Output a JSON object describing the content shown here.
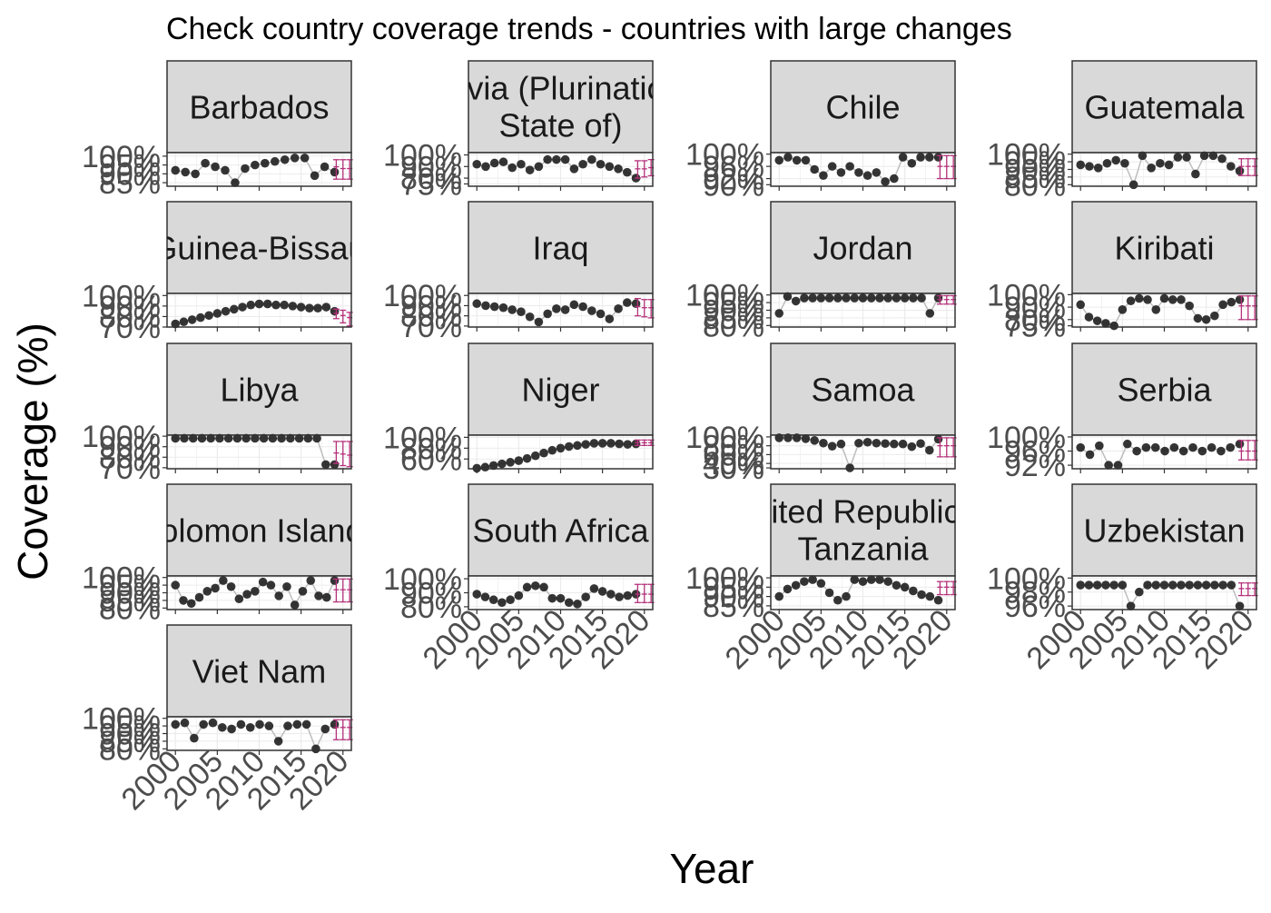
{
  "chart_data": {
    "type": "scatter",
    "title": "Check country coverage trends - countries with large changes",
    "xlabel": "Year",
    "ylabel": "Coverage (%)",
    "x_ticks": [
      "2000",
      "2005",
      "2010",
      "2015",
      "2020"
    ],
    "x_range": [
      1999,
      2021
    ],
    "grid": true,
    "colors": {
      "point": "#1f1f1f",
      "line": "#bdbdbd",
      "estimate": "#b5307a",
      "strip": "#d9d9d9",
      "border": "#333333",
      "grid": "#ebebeb",
      "axis_text": "#4d4d4d"
    },
    "panels": [
      {
        "name": "Barbados",
        "strip": [
          "Barbados"
        ],
        "y_ticks": [
          "100%",
          "95%",
          "90%",
          "85%"
        ],
        "ylim": [
          83,
          102
        ],
        "values": [
          92,
          91,
          90,
          96,
          94,
          92,
          85,
          93,
          95,
          96,
          97,
          98,
          99,
          99,
          89,
          94,
          91
        ],
        "estimates": [
          [
            94,
            87,
            98
          ],
          [
            93,
            87,
            98
          ],
          [
            93,
            87,
            98
          ]
        ]
      },
      {
        "name": "Bolivia (Plurinational State of)",
        "strip": [
          "Bolivia (Plurinational",
          "State of)"
        ],
        "y_ticks": [
          "100%",
          "90%",
          "80%",
          "75%"
        ],
        "ylim": [
          73,
          102
        ],
        "values": [
          92,
          90,
          93,
          94,
          89,
          92,
          87,
          90,
          96,
          96,
          96,
          88,
          92,
          96,
          92,
          90,
          88,
          85,
          80
        ],
        "estimates": [
          [
            88,
            80,
            95
          ],
          [
            88,
            81,
            95
          ],
          [
            89,
            82,
            96
          ]
        ]
      },
      {
        "name": "Chile",
        "strip": [
          "Chile"
        ],
        "y_ticks": [
          "100%",
          "96%",
          "92%",
          "90%"
        ],
        "ylim": [
          89.5,
          100.5
        ],
        "values": [
          98,
          99,
          98,
          98,
          95,
          93,
          96,
          94,
          96,
          94,
          93,
          94,
          91,
          92,
          99,
          97,
          99,
          99,
          99
        ],
        "estimates": [
          [
            96,
            92,
            99.5
          ],
          [
            96,
            92,
            99.5
          ],
          [
            96,
            92,
            99.5
          ]
        ]
      },
      {
        "name": "Guatemala",
        "strip": [
          "Guatemala"
        ],
        "y_ticks": [
          "100%",
          "95%",
          "90%",
          "85%",
          "80%"
        ],
        "ylim": [
          79,
          101
        ],
        "values": [
          93,
          92,
          91,
          94,
          96,
          94,
          80,
          99,
          91,
          94,
          93,
          98,
          98,
          87,
          99,
          99,
          97,
          92,
          89
        ],
        "estimates": [
          [
            92,
            86,
            97
          ],
          [
            92,
            86,
            97
          ],
          [
            92,
            86,
            97
          ]
        ]
      },
      {
        "name": "Guinea-Bissau",
        "strip": [
          "Guinea-Bissau"
        ],
        "y_ticks": [
          "100%",
          "90%",
          "80%",
          "70%"
        ],
        "ylim": [
          70,
          102
        ],
        "values": [
          73,
          75,
          77,
          79,
          81,
          83,
          85,
          87,
          89,
          91,
          92,
          92,
          91,
          91,
          90,
          89,
          88,
          88,
          89,
          85
        ],
        "estimates": [
          [
            83,
            78,
            87
          ],
          [
            81,
            74,
            86
          ],
          [
            79,
            71,
            84
          ]
        ]
      },
      {
        "name": "Iraq",
        "strip": [
          "Iraq"
        ],
        "y_ticks": [
          "100%",
          "90%",
          "80%",
          "70%"
        ],
        "ylim": [
          69,
          102
        ],
        "values": [
          92,
          90,
          89,
          88,
          86,
          84,
          79,
          74,
          82,
          87,
          86,
          91,
          89,
          85,
          82,
          77,
          87,
          93,
          92
        ],
        "estimates": [
          [
            89,
            80,
            97
          ],
          [
            88,
            79,
            96
          ],
          [
            88,
            78,
            96
          ]
        ]
      },
      {
        "name": "Jordan",
        "strip": [
          "Jordan"
        ],
        "y_ticks": [
          "100%",
          "95%",
          "90%",
          "85%",
          "80%"
        ],
        "ylim": [
          79,
          101
        ],
        "values": [
          88,
          99,
          96,
          98,
          98,
          98,
          98,
          98,
          98,
          98,
          98,
          98,
          98,
          98,
          98,
          98,
          98,
          98,
          88,
          98
        ],
        "estimates": [
          [
            97,
            94,
            99.5
          ],
          [
            97,
            94,
            99.5
          ],
          [
            97,
            94,
            99.5
          ]
        ]
      },
      {
        "name": "Kiribati",
        "strip": [
          "Kiribati"
        ],
        "y_ticks": [
          "100%",
          "90%",
          "80%",
          "75%"
        ],
        "ylim": [
          74,
          101
        ],
        "values": [
          92,
          82,
          79,
          77,
          75,
          88,
          95,
          97,
          96,
          88,
          97,
          96,
          96,
          91,
          81,
          80,
          83,
          92,
          94,
          96
        ],
        "estimates": [
          [
            91,
            80,
            99
          ],
          [
            91,
            80,
            99
          ],
          [
            91,
            80,
            99
          ]
        ]
      },
      {
        "name": "Libya",
        "strip": [
          "Libya"
        ],
        "y_ticks": [
          "100%",
          "90%",
          "80%",
          "70%"
        ],
        "ylim": [
          69,
          101
        ],
        "values": [
          98,
          98,
          98,
          98,
          98,
          98,
          98,
          98,
          98,
          98,
          98,
          98,
          98,
          98,
          98,
          98,
          98,
          73,
          73
        ],
        "estimates": [
          [
            84,
            74,
            95
          ],
          [
            83,
            72,
            95
          ],
          [
            82,
            71,
            95
          ]
        ]
      },
      {
        "name": "Niger",
        "strip": [
          "Niger"
        ],
        "y_ticks": [
          "100%",
          "80%",
          "60%"
        ],
        "ylim": [
          42,
          104
        ],
        "values": [
          43,
          45,
          48,
          51,
          54,
          57,
          61,
          66,
          71,
          76,
          80,
          83,
          85,
          87,
          89,
          89,
          89,
          88,
          87,
          88
        ],
        "estimates": [
          [
            90,
            85,
            95
          ],
          [
            90,
            85,
            95
          ],
          [
            90,
            85,
            95
          ]
        ]
      },
      {
        "name": "Samoa",
        "strip": [
          "Samoa"
        ],
        "y_ticks": [
          "100%",
          "80%",
          "60%",
          "40%",
          "30%"
        ],
        "ylim": [
          28,
          104
        ],
        "values": [
          98,
          98,
          98,
          96,
          92,
          86,
          79,
          84,
          30,
          86,
          88,
          86,
          85,
          84,
          84,
          78,
          85,
          70,
          95
        ],
        "estimates": [
          [
            80,
            55,
            98
          ],
          [
            80,
            55,
            98
          ],
          [
            80,
            55,
            98
          ]
        ]
      },
      {
        "name": "Serbia",
        "strip": [
          "Serbia"
        ],
        "y_ticks": [
          "100%",
          "96%",
          "92%"
        ],
        "ylim": [
          91,
          100.5
        ],
        "values": [
          97,
          95,
          97.5,
          92,
          92,
          98,
          96,
          97,
          97,
          96,
          97,
          96,
          97,
          96,
          97,
          96,
          97,
          98
        ],
        "estimates": [
          [
            96,
            93.5,
            99
          ],
          [
            96,
            93.5,
            99
          ],
          [
            96,
            93.5,
            99
          ]
        ]
      },
      {
        "name": "Solomon Islands",
        "strip": [
          "Solomon Islands"
        ],
        "y_ticks": [
          "100%",
          "95%",
          "90%",
          "85%",
          "80%"
        ],
        "ylim": [
          79,
          101
        ],
        "values": [
          95,
          85,
          83,
          87,
          91,
          93,
          98,
          94,
          86,
          89,
          91,
          97,
          95,
          88,
          94,
          82,
          91,
          98,
          88,
          87,
          98
        ],
        "estimates": [
          [
            92,
            84,
            99
          ],
          [
            92,
            84,
            99
          ],
          [
            92,
            84,
            99
          ]
        ]
      },
      {
        "name": "South Africa",
        "strip": [
          "South Africa"
        ],
        "y_ticks": [
          "100%",
          "90%",
          "80%"
        ],
        "ylim": [
          78,
          102
        ],
        "values": [
          89,
          87,
          85,
          83,
          85,
          88,
          94,
          95,
          94,
          86,
          86,
          83,
          82,
          87,
          93,
          91,
          89,
          87,
          88,
          89
        ],
        "estimates": [
          [
            89,
            83,
            96
          ],
          [
            89,
            83,
            96
          ],
          [
            89,
            83,
            96
          ]
        ]
      },
      {
        "name": "United Republic of Tanzania",
        "strip": [
          "United Republic of",
          "Tanzania"
        ],
        "y_ticks": [
          "100%",
          "95%",
          "90%",
          "85%"
        ],
        "ylim": [
          83,
          101
        ],
        "values": [
          90,
          94,
          96,
          98,
          99,
          97,
          92,
          88,
          90,
          99,
          98,
          99,
          99,
          98,
          96,
          95,
          93,
          91,
          90,
          88
        ],
        "estimates": [
          [
            95,
            91,
            98
          ],
          [
            95,
            91,
            98
          ],
          [
            95,
            91,
            98
          ]
        ]
      },
      {
        "name": "Uzbekistan",
        "strip": [
          "Uzbekistan"
        ],
        "y_ticks": [
          "100%",
          "98%",
          "96%"
        ],
        "ylim": [
          95.5,
          100.3
        ],
        "values": [
          99,
          99,
          99,
          99,
          99,
          99,
          96,
          98,
          99,
          99,
          99,
          99,
          99,
          99,
          99,
          99,
          99,
          99,
          99,
          96
        ],
        "estimates": [
          [
            98.5,
            97.5,
            99.3
          ],
          [
            98.5,
            97.5,
            99.3
          ],
          [
            98.5,
            97.5,
            99.3
          ]
        ]
      },
      {
        "name": "Viet Nam",
        "strip": [
          "Viet Nam"
        ],
        "y_ticks": [
          "100%",
          "95%",
          "90%",
          "85%",
          "80%"
        ],
        "ylim": [
          79,
          101
        ],
        "values": [
          96,
          97,
          87,
          96,
          97,
          94,
          93,
          96,
          94,
          96,
          95,
          85,
          95,
          96,
          96,
          80,
          93,
          96
        ],
        "estimates": [
          [
            94,
            86,
            99
          ],
          [
            94,
            86,
            99
          ],
          [
            94,
            86,
            99
          ]
        ]
      }
    ]
  }
}
